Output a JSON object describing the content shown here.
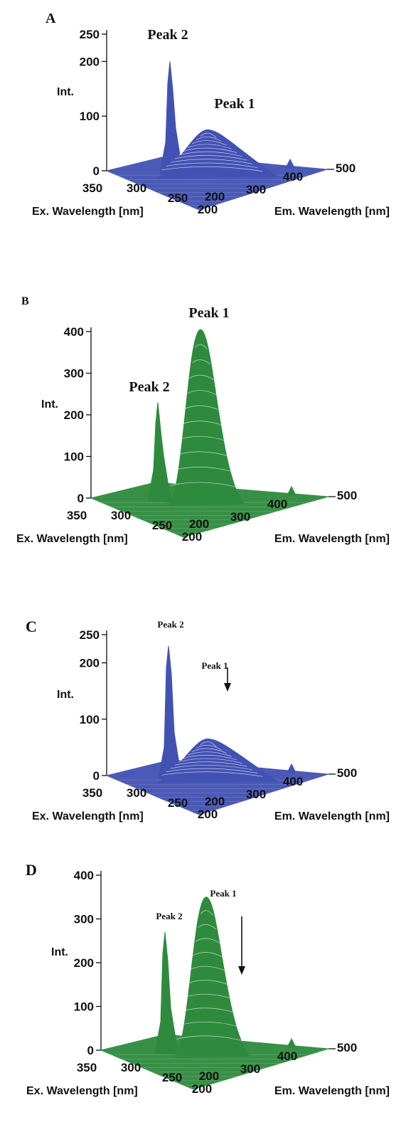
{
  "figure": {
    "panels": [
      {
        "letter": "A",
        "color": "#4252b3",
        "peak_label_style": "large",
        "arrow": false,
        "chart_data": {
          "type": "surface",
          "zlabel": "Int.",
          "xlabel": "Ex. Wavelength [nm]",
          "ylabel": "Em. Wavelength [nm]",
          "z_ticks": [
            0,
            100,
            200,
            250
          ],
          "x_ticks": [
            350,
            300,
            250,
            200
          ],
          "y_ticks": [
            200,
            300,
            400,
            500
          ],
          "zlim": [
            0,
            250
          ],
          "peaks": [
            {
              "label": "Peak 2",
              "ex": 240,
              "em": 250,
              "int": 200
            },
            {
              "label": "Peak 1",
              "ex": 240,
              "em": 340,
              "int": 75
            }
          ]
        }
      },
      {
        "letter": "B",
        "color": "#2e8b3e",
        "peak_label_style": "large",
        "arrow": false,
        "chart_data": {
          "type": "surface",
          "zlabel": "Int.",
          "xlabel": "Ex. Wavelength [nm]",
          "ylabel": "Em. Wavelength [nm]",
          "z_ticks": [
            0,
            100,
            200,
            300,
            400
          ],
          "x_ticks": [
            350,
            300,
            250,
            200
          ],
          "y_ticks": [
            200,
            300,
            400,
            500
          ],
          "zlim": [
            0,
            400
          ],
          "peaks": [
            {
              "label": "Peak 2",
              "ex": 240,
              "em": 250,
              "int": 230
            },
            {
              "label": "Peak 1",
              "ex": 240,
              "em": 340,
              "int": 405
            }
          ]
        }
      },
      {
        "letter": "C",
        "color": "#4252b3",
        "peak_label_style": "small",
        "arrow": true,
        "chart_data": {
          "type": "surface",
          "zlabel": "Int.",
          "xlabel": "Ex. Wavelength [nm]",
          "ylabel": "Em. Wavelength [nm]",
          "z_ticks": [
            0,
            100,
            200,
            250
          ],
          "x_ticks": [
            350,
            300,
            250,
            200
          ],
          "y_ticks": [
            200,
            300,
            400,
            500
          ],
          "zlim": [
            0,
            250
          ],
          "peaks": [
            {
              "label": "Peak 2",
              "ex": 240,
              "em": 250,
              "int": 230
            },
            {
              "label": "Peak 1",
              "ex": 240,
              "em": 340,
              "int": 65
            }
          ]
        }
      },
      {
        "letter": "D",
        "color": "#2e8b3e",
        "peak_label_style": "small",
        "arrow": true,
        "chart_data": {
          "type": "surface",
          "zlabel": "Int.",
          "xlabel": "Ex. Wavelength [nm]",
          "ylabel": "Em. Wavelength [nm]",
          "z_ticks": [
            0,
            100,
            200,
            300,
            400
          ],
          "x_ticks": [
            350,
            300,
            250,
            200
          ],
          "y_ticks": [
            200,
            300,
            400,
            500
          ],
          "zlim": [
            0,
            400
          ],
          "peaks": [
            {
              "label": "Peak 2",
              "ex": 240,
              "em": 250,
              "int": 270
            },
            {
              "label": "Peak 1",
              "ex": 240,
              "em": 340,
              "int": 350
            }
          ]
        }
      }
    ]
  }
}
